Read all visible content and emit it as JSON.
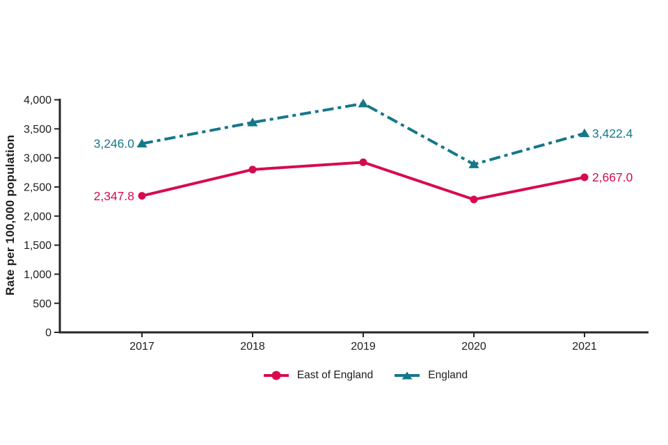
{
  "chart_data": {
    "type": "line",
    "title": "",
    "xlabel": "",
    "ylabel": "Rate per 100,000 population",
    "categories": [
      "2017",
      "2018",
      "2019",
      "2020",
      "2021"
    ],
    "ylim": [
      0,
      4000
    ],
    "ytick_step": 500,
    "ytick_labels": [
      "0",
      "500",
      "1,000",
      "1,500",
      "2,000",
      "2,500",
      "3,000",
      "3,500",
      "4,000"
    ],
    "grid": false,
    "legend_position": "bottom",
    "axis_color": "#262626",
    "tick_label_color": "#1d1d1d",
    "series": [
      {
        "name": "East of England",
        "color": "#d70a50",
        "marker": "circle",
        "line_style": "solid",
        "values": [
          2347.8,
          2800,
          2925,
          2285,
          2667.0
        ],
        "first_point_label": "2,347.8",
        "last_point_label": "2,667.0"
      },
      {
        "name": "England",
        "color": "#15778a",
        "marker": "triangle",
        "line_style": "dash-dot",
        "values": [
          3246.0,
          3610,
          3935,
          2890,
          3422.4
        ],
        "first_point_label": "3,246.0",
        "last_point_label": "3,422.4"
      }
    ]
  }
}
